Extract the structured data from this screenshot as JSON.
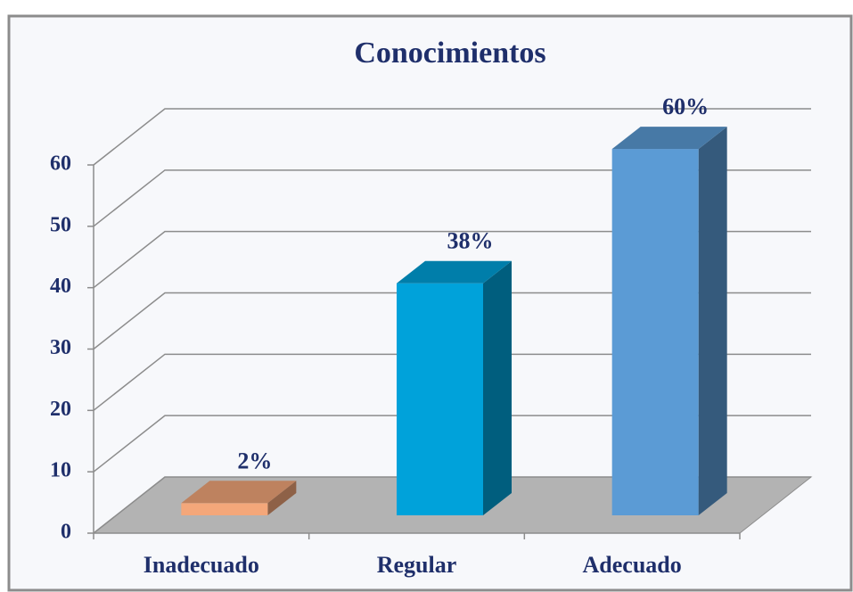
{
  "chart_data": {
    "type": "bar3d",
    "title": "Conocimientos",
    "categories": [
      "Inadecuado",
      "Regular",
      "Adecuado"
    ],
    "values": [
      2,
      38,
      60
    ],
    "value_labels": [
      "2%",
      "38%",
      "60%"
    ],
    "colors": [
      "#f4a77a",
      "#00a2da",
      "#5b9bd5"
    ],
    "ylim": [
      0,
      60
    ],
    "yticks": [
      0,
      10,
      20,
      30,
      40,
      50,
      60
    ],
    "grid": true
  }
}
